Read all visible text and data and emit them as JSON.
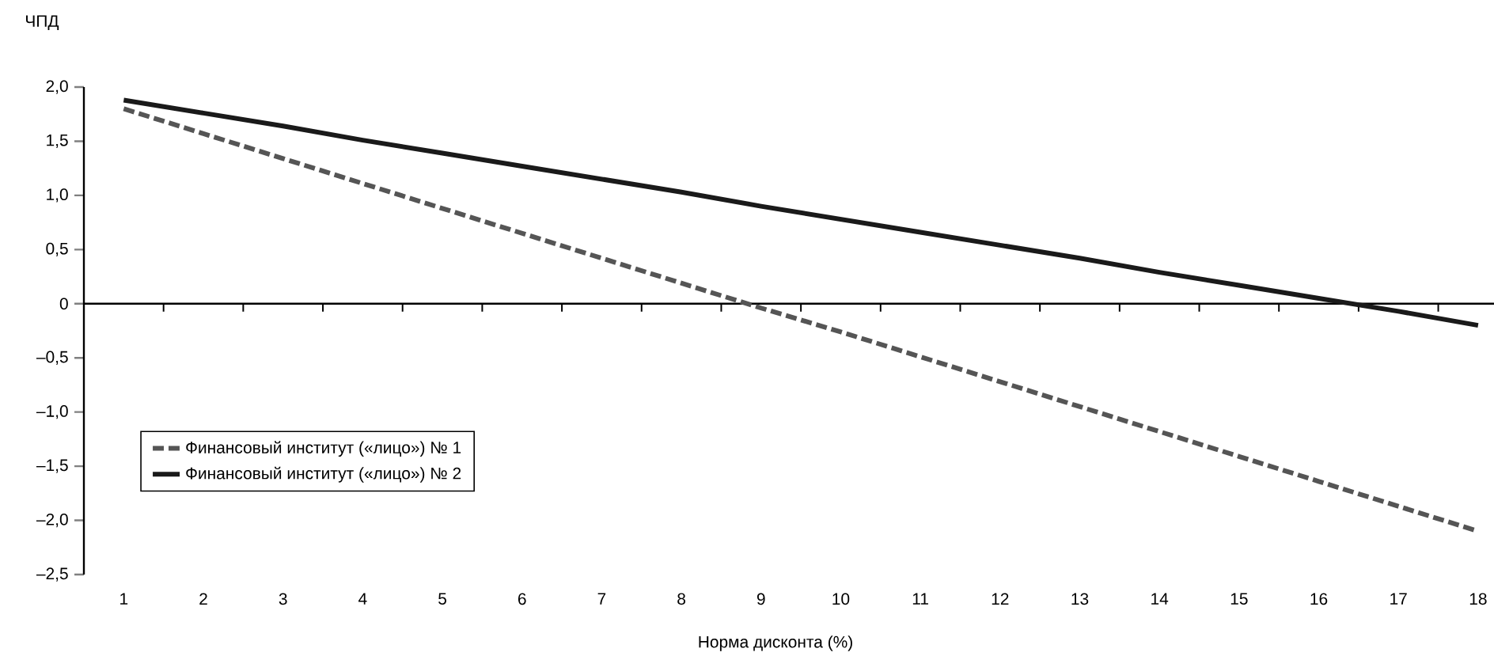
{
  "chart_data": {
    "type": "line",
    "xlabel": "Норма дисконта (%)",
    "ylabel": "ЧПД",
    "categories": [
      "1",
      "2",
      "3",
      "4",
      "5",
      "6",
      "7",
      "8",
      "9",
      "10",
      "11",
      "12",
      "13",
      "14",
      "15",
      "16",
      "17",
      "18"
    ],
    "series": [
      {
        "name": "Финансовый институт («лицо») № 1",
        "color": "#555555",
        "line_style": "dashed",
        "values": [
          1.8,
          1.57,
          1.34,
          1.11,
          0.88,
          0.65,
          0.42,
          0.19,
          -0.04,
          -0.26,
          -0.49,
          -0.72,
          -0.95,
          -1.18,
          -1.41,
          -1.64,
          -1.87,
          -2.1
        ]
      },
      {
        "name": "Финансовый институт («лицо») № 2",
        "color": "#1a1a1a",
        "line_style": "solid",
        "values": [
          1.88,
          1.76,
          1.64,
          1.51,
          1.39,
          1.27,
          1.15,
          1.03,
          0.9,
          0.78,
          0.66,
          0.54,
          0.42,
          0.29,
          0.17,
          0.05,
          -0.07,
          -0.2
        ]
      }
    ],
    "ylim": [
      -2.5,
      2.0
    ],
    "yticks": [
      {
        "value": -2.5,
        "label": "–2,5"
      },
      {
        "value": -2.0,
        "label": "–2,0"
      },
      {
        "value": -1.5,
        "label": "–1,5"
      },
      {
        "value": -1.0,
        "label": "–1,0"
      },
      {
        "value": -0.5,
        "label": "–0,5"
      },
      0,
      {
        "value": 0.5,
        "label": "0,5"
      },
      {
        "value": 1.0,
        "label": "1,0"
      },
      {
        "value": 1.5,
        "label": "1,5"
      },
      {
        "value": 2.0,
        "label": "2,0"
      }
    ],
    "legend": "bottom left",
    "marker": "none"
  }
}
